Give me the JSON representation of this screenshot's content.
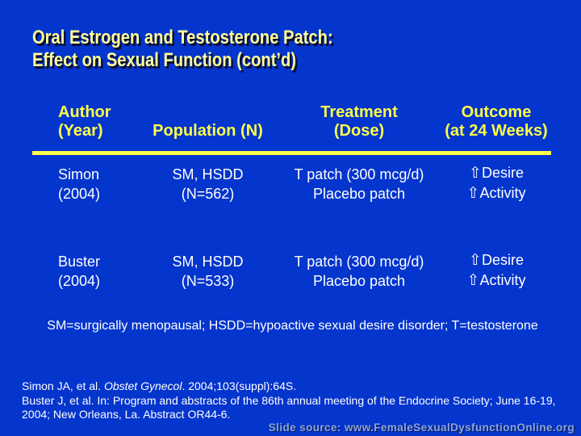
{
  "slide": {
    "title": {
      "line1": "Oral Estrogen and Testosterone Patch:",
      "line2": "Effect on Sexual Function (cont’d)"
    },
    "table": {
      "headers": [
        {
          "line1": "Author",
          "line2": "(Year)"
        },
        {
          "line1": "",
          "line2": "Population (N)"
        },
        {
          "line1": "Treatment",
          "line2": "(Dose)"
        },
        {
          "line1": "Outcome",
          "line2": "(at 24 Weeks)"
        }
      ],
      "rows": [
        {
          "author": [
            "Simon",
            "(2004)"
          ],
          "population": [
            "SM, HSDD",
            "(N=562)"
          ],
          "treatment": [
            "T patch (300 mcg/d)",
            "Placebo patch"
          ],
          "outcome": [
            {
              "arrow": "⇧",
              "label": "Desire"
            },
            {
              "arrow": "⇧",
              "label": "Activity"
            }
          ]
        },
        {
          "author": [
            "Buster",
            "(2004)"
          ],
          "population": [
            "SM, HSDD",
            "(N=533)"
          ],
          "treatment": [
            "T patch (300 mcg/d)",
            "Placebo patch"
          ],
          "outcome": [
            {
              "arrow": "⇧",
              "label": "Desire"
            },
            {
              "arrow": "⇧",
              "label": "Activity"
            }
          ]
        }
      ]
    },
    "footnote": "SM=surgically menopausal; HSDD=hypoactive sexual desire disorder; T=testosterone",
    "references": {
      "ref1": {
        "pre": "Simon JA, et al. ",
        "italic": "Obstet Gynecol",
        "post": ". 2004;103(suppl):64S."
      },
      "ref2": "Buster J, et al. In: Program and abstracts of the 86th annual meeting of the Endocrine Society; June 16-19, 2004; New Orleans, La. Abstract OR44-6."
    },
    "source": "Slide source: www.FemaleSexualDysfunctionOnline.org"
  },
  "colors": {
    "background": "#0435cd",
    "title_yellow": "#ffff9e",
    "accent_yellow": "#ffff4a",
    "body_white": "#ffffff",
    "source_blue": "#8ea6db"
  }
}
